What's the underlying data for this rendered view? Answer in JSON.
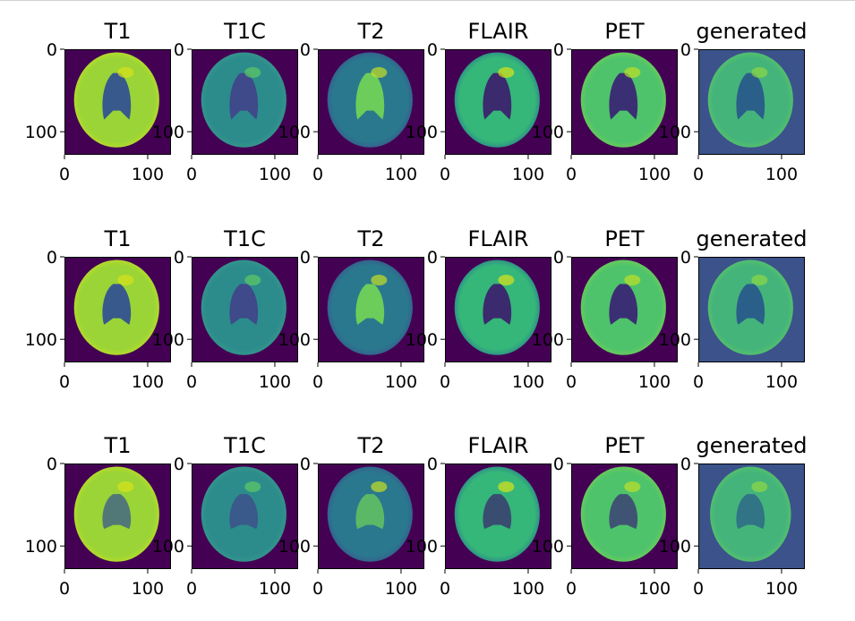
{
  "chart_data": {
    "type": "heatmap",
    "layout": "3x6 image grid",
    "colormap": "viridis",
    "grid": false,
    "image_extent": [
      0,
      128
    ],
    "xticks": [
      0,
      100
    ],
    "yticks": [
      0,
      100
    ],
    "xticklabels": [
      "0",
      "100"
    ],
    "yticklabels": [
      "0",
      "100"
    ],
    "panel_titles": [
      "T1",
      "T1C",
      "T2",
      "FLAIR",
      "PET",
      "generated"
    ],
    "rows": [
      {
        "panels": [
          {
            "title": "T1"
          },
          {
            "title": "T1C"
          },
          {
            "title": "T2"
          },
          {
            "title": "FLAIR"
          },
          {
            "title": "PET"
          },
          {
            "title": "generated"
          }
        ]
      },
      {
        "panels": [
          {
            "title": "T1"
          },
          {
            "title": "T1C"
          },
          {
            "title": "T2"
          },
          {
            "title": "FLAIR"
          },
          {
            "title": "PET"
          },
          {
            "title": "generated"
          }
        ]
      },
      {
        "panels": [
          {
            "title": "T1"
          },
          {
            "title": "T1C"
          },
          {
            "title": "T2"
          },
          {
            "title": "FLAIR"
          },
          {
            "title": "PET"
          },
          {
            "title": "generated"
          }
        ]
      }
    ]
  }
}
